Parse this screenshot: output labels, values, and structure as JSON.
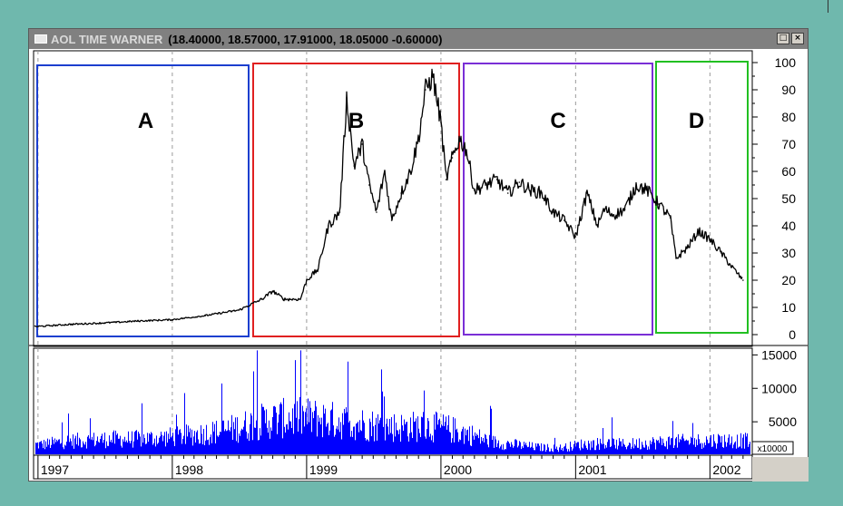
{
  "window": {
    "title_name": "AOL TIME WARNER",
    "title_quote": "(18.40000, 18.57000, 17.91000, 18.05000 -0.60000)",
    "buttons": [
      "□",
      "×"
    ]
  },
  "colors": {
    "background": "#6fb8ad",
    "price_line": "#000000",
    "volume_bars": "#0000ff",
    "box_A": "#1c3fcf",
    "box_B": "#e02020",
    "box_C": "#7a2fd6",
    "box_D": "#22c022"
  },
  "chart_data": [
    {
      "type": "line",
      "panel": "price",
      "series": [
        {
          "x": [
            "1997-01-01",
            "1997-04-01",
            "1997-07-01",
            "1997-10-01",
            "1998-01-01",
            "1998-04-01",
            "1998-07-01",
            "1998-09-01",
            "1998-10-01",
            "1998-11-01",
            "1998-12-15",
            "1999-01-01",
            "1999-02-01",
            "1999-03-01",
            "1999-04-01",
            "1999-04-20",
            "1999-05-10",
            "1999-06-01",
            "1999-06-20",
            "1999-07-10",
            "1999-08-01",
            "1999-08-20",
            "1999-09-15",
            "1999-10-10",
            "1999-11-01",
            "1999-11-20",
            "1999-12-10",
            "2000-01-01",
            "2000-01-15",
            "2000-02-01",
            "2000-02-20",
            "2000-03-10",
            "2000-04-01",
            "2000-05-01",
            "2000-06-01",
            "2000-07-01",
            "2000-08-01",
            "2000-09-01",
            "2000-10-01",
            "2000-11-01",
            "2000-12-01",
            "2001-01-01",
            "2001-02-01",
            "2001-03-01",
            "2001-03-20",
            "2001-04-15",
            "2001-05-15",
            "2001-06-15",
            "2001-07-15",
            "2001-08-15",
            "2001-09-15",
            "2001-10-01",
            "2001-11-01",
            "2001-12-01",
            "2002-01-01",
            "2002-02-01",
            "2002-03-01",
            "2002-04-01"
          ],
          "values": [
            3,
            3.8,
            4.3,
            5,
            5.5,
            7,
            9,
            13,
            16,
            13,
            13,
            20,
            24,
            40,
            45,
            87,
            62,
            70,
            55,
            45,
            60,
            42,
            52,
            60,
            72,
            90,
            95,
            78,
            57,
            65,
            72,
            68,
            53,
            55,
            57,
            52,
            56,
            53,
            52,
            45,
            42,
            36,
            52,
            40,
            46,
            44,
            46,
            55,
            53,
            48,
            43,
            28,
            32,
            38,
            35,
            30,
            25,
            20
          ]
        }
      ],
      "yticks": [
        0,
        10,
        20,
        30,
        40,
        50,
        60,
        70,
        80,
        90,
        100
      ],
      "ylim": [
        -3,
        103
      ],
      "annotations": [
        "A",
        "B",
        "C",
        "D"
      ]
    },
    {
      "type": "bar",
      "panel": "volume",
      "series": [
        {
          "x": [
            "1997-01",
            "1997-03",
            "1997-05",
            "1997-07",
            "1997-09",
            "1997-11",
            "1998-01",
            "1998-03",
            "1998-05",
            "1998-07",
            "1998-09",
            "1998-11",
            "1999-01",
            "1999-03",
            "1999-05",
            "1999-07",
            "1999-09",
            "1999-11",
            "2000-01",
            "2000-03",
            "2000-05",
            "2000-07",
            "2000-09",
            "2000-11",
            "2001-01",
            "2001-03",
            "2001-05",
            "2001-07",
            "2001-09",
            "2001-11",
            "2002-01",
            "2002-03"
          ],
          "values": [
            2000,
            2600,
            2800,
            3000,
            3000,
            3200,
            3500,
            4000,
            4500,
            5500,
            6500,
            7000,
            7000,
            6500,
            6000,
            5500,
            5200,
            5500,
            5000,
            4000,
            2500,
            2000,
            1500,
            1300,
            2000,
            2200,
            2000,
            2300,
            2500,
            2600,
            2800,
            2700
          ]
        }
      ],
      "yticks": [
        5000,
        10000,
        15000
      ],
      "ylim": [
        0,
        16000
      ],
      "multiplier_label": "x10000"
    }
  ],
  "x_axis": {
    "labels": [
      "1997",
      "1998",
      "1999",
      "2000",
      "2001",
      "2002"
    ],
    "label_dates": [
      "1997-01-01",
      "1998-01-01",
      "1999-01-01",
      "2000-01-01",
      "2001-01-01",
      "2002-01-01"
    ]
  }
}
